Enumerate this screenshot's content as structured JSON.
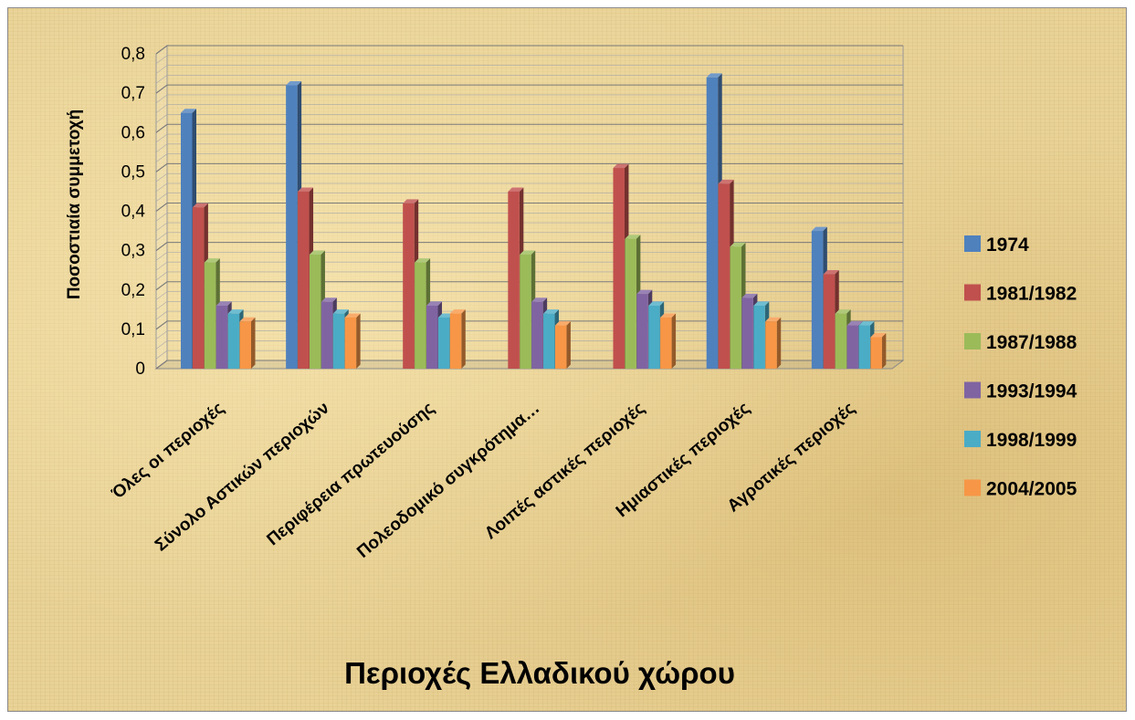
{
  "chart_data": {
    "type": "bar",
    "title": "",
    "xlabel": "Περιοχές Ελλαδικού χώρου",
    "ylabel": "Ποσοστιαία συμμετοχή",
    "ylim": [
      0,
      0.8
    ],
    "yticks": [
      "0",
      "0,1",
      "0,2",
      "0,3",
      "0,4",
      "0,5",
      "0,6",
      "0,7",
      "0,8"
    ],
    "grid": true,
    "legend_position": "right",
    "categories": [
      "Όλες οι περιοχές",
      "Σύνολο Αστικών περιοχών",
      "Περιφέρεια πρωτευούσης",
      "Πολεοδομικό συγκρότημα…",
      "Λοιπές αστικές περιοχές",
      "Ημιαστικές περιοχές",
      "Αγροτικές περιοχές"
    ],
    "series": [
      {
        "name": "1974",
        "color": "#4f81bd",
        "values": [
          0.65,
          0.72,
          null,
          null,
          null,
          0.74,
          0.35
        ]
      },
      {
        "name": "1981/1982",
        "color": "#c0504d",
        "values": [
          0.41,
          0.45,
          0.42,
          0.45,
          0.51,
          0.47,
          0.24
        ]
      },
      {
        "name": "1987/1988",
        "color": "#9bbb59",
        "values": [
          0.27,
          0.29,
          0.27,
          0.29,
          0.33,
          0.31,
          0.14
        ]
      },
      {
        "name": "1993/1994",
        "color": "#8064a2",
        "values": [
          0.16,
          0.17,
          0.16,
          0.17,
          0.19,
          0.18,
          0.11
        ]
      },
      {
        "name": "1998/1999",
        "color": "#4bacc6",
        "values": [
          0.14,
          0.14,
          0.13,
          0.14,
          0.16,
          0.16,
          0.11
        ]
      },
      {
        "name": "2004/2005",
        "color": "#f79646",
        "values": [
          0.12,
          0.13,
          0.14,
          0.11,
          0.13,
          0.12,
          0.08
        ]
      }
    ]
  }
}
